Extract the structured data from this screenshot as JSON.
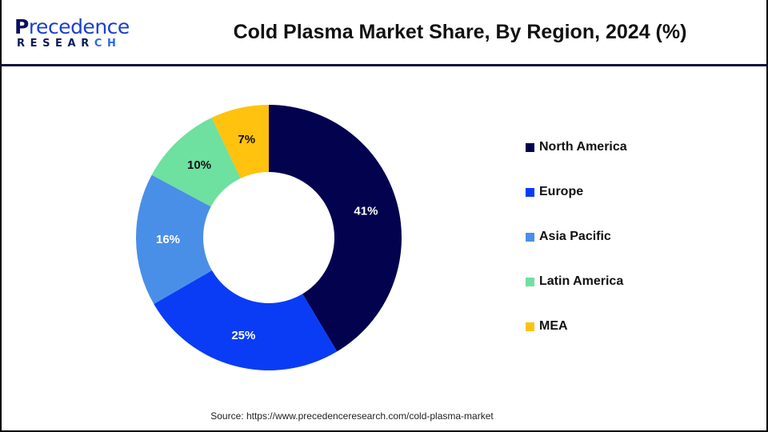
{
  "logo": {
    "top_initial": "P",
    "top_rest": "recedence",
    "bottom_main": "RESEAR",
    "bottom_accent": "CH"
  },
  "header": {
    "title": "Cold Plasma Market Share, By Region, 2024 (%)"
  },
  "source": {
    "text": "Source: https://www.precedenceresearch.com/cold-plasma-market"
  },
  "legend": {
    "items": [
      {
        "label": "North America",
        "color": "#02024f"
      },
      {
        "label": "Europe",
        "color": "#0a3cf5"
      },
      {
        "label": "Asia Pacific",
        "color": "#4a8fe7"
      },
      {
        "label": "Latin America",
        "color": "#6ee0a0"
      },
      {
        "label": "MEA",
        "color": "#ffc20e"
      }
    ]
  },
  "chart_data": {
    "type": "pie",
    "subtype": "donut",
    "title": "Cold Plasma Market Share, By Region, 2024 (%)",
    "categories": [
      "North America",
      "Europe",
      "Asia Pacific",
      "Latin America",
      "MEA"
    ],
    "values": [
      41,
      25,
      16,
      10,
      7
    ],
    "labels": [
      "41%",
      "25%",
      "16%",
      "10%",
      "7%"
    ],
    "colors": [
      "#02024f",
      "#0a3cf5",
      "#4a8fe7",
      "#6ee0a0",
      "#ffc20e"
    ],
    "label_colors": [
      "#ffffff",
      "#ffffff",
      "#ffffff",
      "#111111",
      "#111111"
    ],
    "start_angle_deg": 0,
    "direction": "clockwise",
    "legend_position": "right",
    "unit": "%"
  }
}
